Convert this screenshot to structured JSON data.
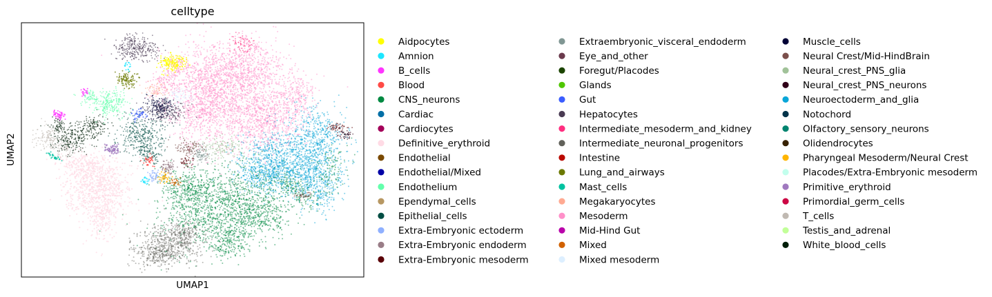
{
  "chart_data": {
    "type": "scatter",
    "title": "celltype",
    "xlabel": "UMAP1",
    "ylabel": "UMAP2",
    "ticks": "none",
    "grid": false,
    "legend_position": "right",
    "legend": [
      {
        "name": "Aidpocytes",
        "color": "#ffff00"
      },
      {
        "name": "Amnion",
        "color": "#1ce6ff"
      },
      {
        "name": "B_cells",
        "color": "#ff34ff"
      },
      {
        "name": "Blood",
        "color": "#ff4a46"
      },
      {
        "name": "CNS_neurons",
        "color": "#008941"
      },
      {
        "name": "Cardiac",
        "color": "#006fa6"
      },
      {
        "name": "Cardiocytes",
        "color": "#a30059"
      },
      {
        "name": "Definitive_erythroid",
        "color": "#ffdbe5"
      },
      {
        "name": "Endothelial",
        "color": "#7a4900"
      },
      {
        "name": "Endothelial/Mixed",
        "color": "#0000a6"
      },
      {
        "name": "Endothelium",
        "color": "#63ffac"
      },
      {
        "name": "Ependymal_cells",
        "color": "#b79762"
      },
      {
        "name": "Epithelial_cells",
        "color": "#004d43"
      },
      {
        "name": "Extra-Embryonic ectoderm",
        "color": "#8fb0ff"
      },
      {
        "name": "Extra-Embryonic endoderm",
        "color": "#997d87"
      },
      {
        "name": "Extra-Embryonic mesoderm",
        "color": "#5a0007"
      },
      {
        "name": "Extraembryonic_visceral_endoderm",
        "color": "#809693"
      },
      {
        "name": "Eye_and_other",
        "color": "#6a3a4c"
      },
      {
        "name": "Foregut/Placodes",
        "color": "#1b4400"
      },
      {
        "name": "Glands",
        "color": "#4fc601"
      },
      {
        "name": "Gut",
        "color": "#3b5dff"
      },
      {
        "name": "Hepatocytes",
        "color": "#4a3b53"
      },
      {
        "name": "Intermediate_mesoderm_and_kidney",
        "color": "#ff2f80"
      },
      {
        "name": "Intermediate_neuronal_progenitors",
        "color": "#61615a"
      },
      {
        "name": "Intestine",
        "color": "#ba0900"
      },
      {
        "name": "Lung_and_airways",
        "color": "#6b7900"
      },
      {
        "name": "Mast_cells",
        "color": "#00c2a0"
      },
      {
        "name": "Megakaryocytes",
        "color": "#ffaa92"
      },
      {
        "name": "Mesoderm",
        "color": "#ff90c9"
      },
      {
        "name": "Mid-Hind Gut",
        "color": "#b903aa"
      },
      {
        "name": "Mixed",
        "color": "#d16100"
      },
      {
        "name": "Mixed mesoderm",
        "color": "#ddefff"
      },
      {
        "name": "Muscle_cells",
        "color": "#000035"
      },
      {
        "name": "Neural Crest/Mid-HindBrain",
        "color": "#7b4f4b"
      },
      {
        "name": "Neural_crest_PNS_glia",
        "color": "#a1c299"
      },
      {
        "name": "Neural_crest_PNS_neurons",
        "color": "#300018"
      },
      {
        "name": "Neuroectoderm_and_glia",
        "color": "#0aa6d8"
      },
      {
        "name": "Notochord",
        "color": "#013349"
      },
      {
        "name": "Olfactory_sensory_neurons",
        "color": "#00846f"
      },
      {
        "name": "Olidendrocytes",
        "color": "#372101"
      },
      {
        "name": "Pharyngeal Mesoderm/Neural Crest",
        "color": "#ffb500"
      },
      {
        "name": "Placodes/Extra-Embryonic mesoderm",
        "color": "#c2ffed"
      },
      {
        "name": "Primitive_erythroid",
        "color": "#a079bf"
      },
      {
        "name": "Primordial_germ_cells",
        "color": "#cc0744"
      },
      {
        "name": "T_cells",
        "color": "#c0b9b2"
      },
      {
        "name": "Testis_and_adrenal",
        "color": "#c2ff99"
      },
      {
        "name": "White_blood_cells",
        "color": "#001e09"
      }
    ]
  }
}
